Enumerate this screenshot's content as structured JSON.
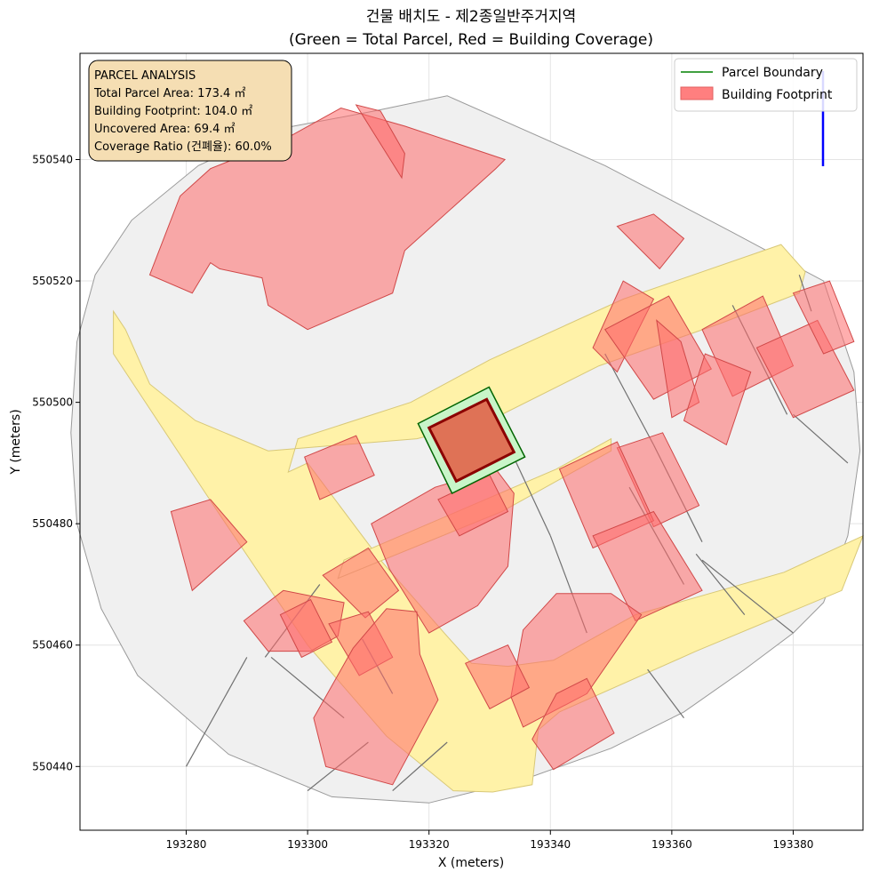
{
  "chart_data": {
    "type": "map",
    "title": "건물 배치도 - 제2종일반주거지역",
    "subtitle": "(Green = Total Parcel, Red = Building Coverage)",
    "xlabel": "X (meters)",
    "ylabel": "Y (meters)",
    "xlim": [
      193262.5,
      193391.5
    ],
    "ylim": [
      550429.5,
      550557.5
    ],
    "x_ticks": [
      193280,
      193300,
      193320,
      193340,
      193360,
      193380
    ],
    "y_ticks": [
      550440,
      550460,
      550480,
      550500,
      550520,
      550540
    ],
    "grid": true,
    "legend_position": "top-right",
    "legend": [
      {
        "label": "Parcel Boundary",
        "kind": "line",
        "color": "#008000"
      },
      {
        "label": "Building Footprint",
        "kind": "patch",
        "color": "#ff7f7f"
      }
    ],
    "info_box": {
      "lines": [
        "PARCEL ANALYSIS",
        "Total Parcel Area: 173.4 ㎡",
        "Building Footprint: 104.0 ㎡",
        "Uncovered Area: 69.4 ㎡",
        "Coverage Ratio (건폐율): 60.0%"
      ]
    },
    "target_parcel": [
      [
        193318.2,
        550496.5
      ],
      [
        193329.9,
        550502.5
      ],
      [
        193335.8,
        550491.0
      ],
      [
        193323.8,
        550485.0
      ]
    ],
    "target_building": [
      [
        193320.0,
        550495.8
      ],
      [
        193329.5,
        550500.5
      ],
      [
        193334.0,
        550491.8
      ],
      [
        193324.5,
        550487.0
      ]
    ],
    "site_area": [
      [
        193311,
        550548
      ],
      [
        193323,
        550550.5
      ],
      [
        193349,
        550539
      ],
      [
        193370,
        550528
      ],
      [
        193385,
        550520
      ],
      [
        193390,
        550505
      ],
      [
        193391,
        550492
      ],
      [
        193389,
        550478
      ],
      [
        193385,
        550467
      ],
      [
        193380,
        550462
      ],
      [
        193372,
        550456
      ],
      [
        193362,
        550449
      ],
      [
        193350,
        550443
      ],
      [
        193336,
        550438
      ],
      [
        193320,
        550434
      ],
      [
        193304,
        550435
      ],
      [
        193287,
        550442
      ],
      [
        193272,
        550455
      ],
      [
        193266,
        550466
      ],
      [
        193262,
        550480
      ],
      [
        193261,
        550495
      ],
      [
        193262,
        550510
      ],
      [
        193265,
        550521
      ],
      [
        193271,
        550530
      ],
      [
        193282,
        550539
      ],
      [
        193295,
        550545
      ]
    ],
    "roads": [
      [
        [
          193268,
          550515
        ],
        [
          193268,
          550508
        ],
        [
          193285.5,
          550481.5
        ],
        [
          193300,
          550460
        ],
        [
          193313,
          550445
        ],
        [
          193324,
          550436
        ],
        [
          193330.5,
          550435.8
        ],
        [
          193337,
          550437
        ],
        [
          193338,
          550446
        ],
        [
          193341.5,
          550449
        ],
        [
          193364,
          550459
        ],
        [
          193388,
          550469
        ],
        [
          193391.5,
          550478
        ],
        [
          193378.5,
          550472
        ],
        [
          193354,
          550465
        ],
        [
          193340.5,
          550457.5
        ],
        [
          193333,
          550456.5
        ],
        [
          193327,
          550457
        ],
        [
          193322.5,
          550462
        ],
        [
          193312,
          550474
        ],
        [
          193300,
          550490
        ],
        [
          193296.8,
          550488.5
        ],
        [
          193298.4,
          550494
        ],
        [
          193317,
          550500
        ],
        [
          193330,
          550507
        ],
        [
          193352,
          550517
        ],
        [
          193378,
          550526
        ],
        [
          193382,
          550521.5
        ],
        [
          193381,
          550518
        ],
        [
          193368,
          550513
        ],
        [
          193348,
          550506
        ],
        [
          193330,
          550497
        ],
        [
          193318,
          550494
        ],
        [
          193293.5,
          550492
        ],
        [
          193281.5,
          550497
        ],
        [
          193274,
          550503
        ],
        [
          193270,
          550512
        ]
      ],
      [
        [
          193306,
          550474
        ],
        [
          193341,
          550489
        ],
        [
          193350,
          550494
        ],
        [
          193350,
          550492
        ],
        [
          193332,
          550482
        ],
        [
          193305,
          550471
        ]
      ]
    ],
    "parcel_lines": [
      [
        [
          193280,
          550440
        ],
        [
          193290,
          550458
        ]
      ],
      [
        [
          193293,
          550458
        ],
        [
          193302,
          550470
        ]
      ],
      [
        [
          193294,
          550458
        ],
        [
          193306,
          550448
        ]
      ],
      [
        [
          193309,
          550461
        ],
        [
          193314,
          550452
        ]
      ],
      [
        [
          193300,
          550436
        ],
        [
          193310,
          550444
        ]
      ],
      [
        [
          193314,
          550436
        ],
        [
          193323,
          550444
        ]
      ],
      [
        [
          193333,
          550493
        ],
        [
          193340,
          550478
        ]
      ],
      [
        [
          193340,
          550478
        ],
        [
          193346,
          550462
        ]
      ],
      [
        [
          193349,
          550508
        ],
        [
          193357,
          550493
        ]
      ],
      [
        [
          193357,
          550493
        ],
        [
          193365,
          550477
        ]
      ],
      [
        [
          193364,
          550475
        ],
        [
          193372,
          550465
        ]
      ],
      [
        [
          193353,
          550486
        ],
        [
          193362,
          550470
        ]
      ],
      [
        [
          193370,
          550516
        ],
        [
          193379,
          550498
        ]
      ],
      [
        [
          193380,
          550498
        ],
        [
          193389,
          550490
        ]
      ],
      [
        [
          193365,
          550474
        ],
        [
          193380,
          550462
        ]
      ],
      [
        [
          193356,
          550456
        ],
        [
          193362,
          550448
        ]
      ],
      [
        [
          193381,
          550521
        ],
        [
          193383,
          550515
        ]
      ]
    ],
    "buildings": [
      [
        [
          193274,
          550521
        ],
        [
          193279,
          550534
        ],
        [
          193284,
          550538.5
        ],
        [
          193296.5,
          550543.5
        ],
        [
          193305.5,
          550548.5
        ],
        [
          193316,
          550545.5
        ],
        [
          193332.5,
          550540
        ],
        [
          193331,
          550538.5
        ],
        [
          193316,
          550525
        ],
        [
          193314,
          550518
        ],
        [
          193300,
          550512
        ],
        [
          193293.5,
          550516
        ],
        [
          193292.5,
          550520.5
        ],
        [
          193285.5,
          550522
        ],
        [
          193284,
          550523
        ],
        [
          193281,
          550518
        ]
      ],
      [
        [
          193315.5,
          550537
        ],
        [
          193308,
          550549
        ],
        [
          193312,
          550548
        ],
        [
          193316,
          550541
        ]
      ],
      [
        [
          193351,
          550529
        ],
        [
          193357,
          550531
        ],
        [
          193362,
          550527
        ],
        [
          193358,
          550522
        ]
      ],
      [
        [
          193347,
          550509
        ],
        [
          193352,
          550520
        ],
        [
          193357,
          550517
        ],
        [
          193351,
          550505
        ]
      ],
      [
        [
          193349,
          550512
        ],
        [
          193359.5,
          550517.5
        ],
        [
          193366.5,
          550505.5
        ],
        [
          193357,
          550500.5
        ]
      ],
      [
        [
          193357.5,
          550513.5
        ],
        [
          193361.5,
          550510
        ],
        [
          193364.5,
          550500
        ],
        [
          193360,
          550497.5
        ]
      ],
      [
        [
          193365,
          550512
        ],
        [
          193375,
          550517.5
        ],
        [
          193380,
          550506
        ],
        [
          193370,
          550501
        ]
      ],
      [
        [
          193362,
          550497
        ],
        [
          193365.5,
          550508
        ],
        [
          193373,
          550505
        ],
        [
          193369,
          550493
        ]
      ],
      [
        [
          193374,
          550509
        ],
        [
          193384,
          550513.5
        ],
        [
          193390,
          550502
        ],
        [
          193380,
          550497.5
        ]
      ],
      [
        [
          193380,
          550518
        ],
        [
          193386,
          550520
        ],
        [
          193390,
          550510
        ],
        [
          193385,
          550508
        ]
      ],
      [
        [
          193351,
          550492.5
        ],
        [
          193358.5,
          550495
        ],
        [
          193364.5,
          550483
        ],
        [
          193357,
          550479.5
        ]
      ],
      [
        [
          193341.5,
          550489
        ],
        [
          193351,
          550493.5
        ],
        [
          193357,
          550480.5
        ],
        [
          193347,
          550476
        ]
      ],
      [
        [
          193347,
          550478
        ],
        [
          193357,
          550482
        ],
        [
          193365,
          550469
        ],
        [
          193354,
          550464
        ]
      ],
      [
        [
          193299.5,
          550491
        ],
        [
          193308,
          550494.5
        ],
        [
          193311,
          550488
        ],
        [
          193302,
          550484
        ]
      ],
      [
        [
          193277.5,
          550482
        ],
        [
          193284,
          550484
        ],
        [
          193290,
          550477
        ],
        [
          193281,
          550469
        ]
      ],
      [
        [
          193310.5,
          550480
        ],
        [
          193321,
          550486
        ],
        [
          193331,
          550489
        ],
        [
          193334,
          550485
        ],
        [
          193333,
          550473
        ],
        [
          193328,
          550466.5
        ],
        [
          193320,
          550462
        ],
        [
          193313.5,
          550472.5
        ]
      ],
      [
        [
          193321.5,
          550484
        ],
        [
          193330,
          550488
        ],
        [
          193333,
          550482
        ],
        [
          193325,
          550478
        ]
      ],
      [
        [
          193302.5,
          550471.5
        ],
        [
          193310,
          550476
        ],
        [
          193315,
          550469
        ],
        [
          193309.5,
          550464.5
        ]
      ],
      [
        [
          193289.5,
          550464
        ],
        [
          193296,
          550469
        ],
        [
          193306,
          550467
        ],
        [
          193305,
          550461.5
        ],
        [
          193300.5,
          550459
        ],
        [
          193293.5,
          550459
        ]
      ],
      [
        [
          193303.5,
          550463.5
        ],
        [
          193310,
          550465.5
        ],
        [
          193314,
          550458
        ],
        [
          193308.5,
          550455
        ]
      ],
      [
        [
          193295.5,
          550465
        ],
        [
          193300.5,
          550467.5
        ],
        [
          193304,
          550460.5
        ],
        [
          193299,
          550458
        ]
      ],
      [
        [
          193301,
          550448
        ],
        [
          193307.5,
          550459.5
        ],
        [
          193313,
          550466
        ],
        [
          193318,
          550465.5
        ],
        [
          193318.5,
          550458.5
        ],
        [
          193321.5,
          550451
        ],
        [
          193314,
          550437
        ],
        [
          193303,
          550440
        ]
      ],
      [
        [
          193333.5,
          550451.5
        ],
        [
          193335.5,
          550462.5
        ],
        [
          193341,
          550468.5
        ],
        [
          193350,
          550468.5
        ],
        [
          193355,
          550465
        ],
        [
          193346,
          550452
        ],
        [
          193335.5,
          550446.5
        ]
      ],
      [
        [
          193326,
          550457
        ],
        [
          193333,
          550460
        ],
        [
          193336.5,
          550453
        ],
        [
          193330,
          550449.5
        ]
      ],
      [
        [
          193337,
          550444.5
        ],
        [
          193341,
          550452
        ],
        [
          193346,
          550454.5
        ],
        [
          193350.5,
          550445.5
        ],
        [
          193340.5,
          550439.5
        ]
      ]
    ]
  }
}
